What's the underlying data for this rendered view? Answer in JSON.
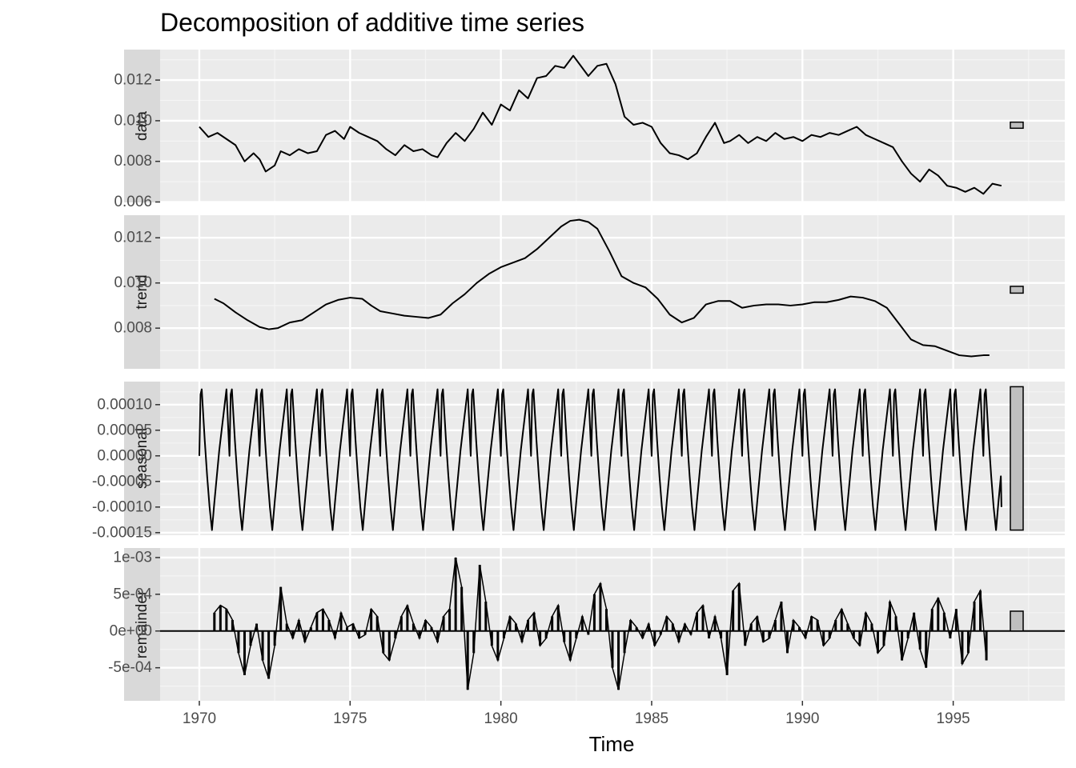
{
  "chart_data": {
    "type": "line",
    "title": "Decomposition of additive time series",
    "xlabel": "Time",
    "xlim": [
      1968.7,
      1998.7
    ],
    "x_ticks": [
      1970,
      1975,
      1980,
      1985,
      1990,
      1995
    ],
    "x_tick_labels": [
      "1970",
      "1975",
      "1980",
      "1985",
      "1990",
      "1995"
    ],
    "grid": true,
    "panels": [
      {
        "name": "data",
        "ylim": [
          0.00598,
          0.0135
        ],
        "y_ticks": [
          0.006,
          0.008,
          0.01,
          0.012
        ],
        "y_tick_labels": [
          "0.006",
          "0.008",
          "0.010",
          "0.012"
        ],
        "range_bar": [
          0.00963,
          0.00993
        ],
        "series": {
          "x": [
            1970.0,
            1970.3,
            1970.6,
            1970.9,
            1971.2,
            1971.5,
            1971.8,
            1972.0,
            1972.2,
            1972.5,
            1972.7,
            1973.0,
            1973.3,
            1973.6,
            1973.9,
            1974.2,
            1974.5,
            1974.8,
            1975.0,
            1975.3,
            1975.6,
            1975.9,
            1976.2,
            1976.5,
            1976.8,
            1977.1,
            1977.4,
            1977.7,
            1977.9,
            1978.2,
            1978.5,
            1978.8,
            1979.1,
            1979.4,
            1979.7,
            1980.0,
            1980.3,
            1980.6,
            1980.9,
            1981.2,
            1981.5,
            1981.8,
            1982.1,
            1982.4,
            1982.6,
            1982.9,
            1983.2,
            1983.5,
            1983.8,
            1984.1,
            1984.4,
            1984.7,
            1985.0,
            1985.3,
            1985.6,
            1985.9,
            1986.2,
            1986.5,
            1986.8,
            1987.1,
            1987.4,
            1987.6,
            1987.9,
            1988.2,
            1988.5,
            1988.8,
            1989.1,
            1989.4,
            1989.7,
            1990.0,
            1990.3,
            1990.6,
            1990.9,
            1991.2,
            1991.5,
            1991.8,
            1992.1,
            1992.4,
            1992.7,
            1993.0,
            1993.3,
            1993.6,
            1993.9,
            1994.2,
            1994.5,
            1994.8,
            1995.1,
            1995.4,
            1995.7,
            1996.0,
            1996.3,
            1996.6
          ],
          "y": [
            0.0097,
            0.0092,
            0.0094,
            0.0091,
            0.0088,
            0.008,
            0.0084,
            0.0081,
            0.0075,
            0.0078,
            0.0085,
            0.0083,
            0.0086,
            0.0084,
            0.0085,
            0.0093,
            0.0095,
            0.0091,
            0.0097,
            0.0094,
            0.0092,
            0.009,
            0.0086,
            0.0083,
            0.0088,
            0.0085,
            0.0086,
            0.0083,
            0.0082,
            0.0089,
            0.0094,
            0.009,
            0.0096,
            0.0104,
            0.0098,
            0.0108,
            0.0105,
            0.0115,
            0.0111,
            0.0121,
            0.0122,
            0.0127,
            0.0126,
            0.0132,
            0.0128,
            0.0122,
            0.0127,
            0.0128,
            0.0118,
            0.0102,
            0.0098,
            0.0099,
            0.0097,
            0.0089,
            0.0084,
            0.0083,
            0.0081,
            0.0084,
            0.0092,
            0.0099,
            0.0089,
            0.009,
            0.0093,
            0.0089,
            0.0092,
            0.009,
            0.0094,
            0.0091,
            0.0092,
            0.009,
            0.0093,
            0.0092,
            0.0094,
            0.0093,
            0.0095,
            0.0097,
            0.0093,
            0.0091,
            0.0089,
            0.0087,
            0.008,
            0.0074,
            0.007,
            0.0076,
            0.0073,
            0.0068,
            0.0067,
            0.0065,
            0.0067,
            0.0064,
            0.0069,
            0.0068
          ]
        }
      },
      {
        "name": "trend",
        "ylim": [
          0.0062,
          0.013
        ],
        "y_ticks": [
          0.008,
          0.01,
          0.012
        ],
        "y_tick_labels": [
          "0.008",
          "0.010",
          "0.012"
        ],
        "range_bar": [
          0.00955,
          0.00985
        ],
        "series": {
          "x": [
            1970.5,
            1970.8,
            1971.2,
            1971.6,
            1972.0,
            1972.3,
            1972.6,
            1973.0,
            1973.4,
            1973.8,
            1974.2,
            1974.6,
            1975.0,
            1975.4,
            1975.7,
            1976.0,
            1976.4,
            1976.8,
            1977.2,
            1977.6,
            1978.0,
            1978.4,
            1978.8,
            1979.2,
            1979.6,
            1980.0,
            1980.4,
            1980.8,
            1981.2,
            1981.6,
            1982.0,
            1982.3,
            1982.6,
            1982.9,
            1983.2,
            1983.6,
            1984.0,
            1984.4,
            1984.8,
            1985.2,
            1985.6,
            1986.0,
            1986.4,
            1986.8,
            1987.2,
            1987.6,
            1988.0,
            1988.4,
            1988.8,
            1989.2,
            1989.6,
            1990.0,
            1990.4,
            1990.8,
            1991.2,
            1991.6,
            1992.0,
            1992.4,
            1992.8,
            1993.2,
            1993.6,
            1994.0,
            1994.4,
            1994.8,
            1995.2,
            1995.6,
            1996.0,
            1996.2
          ],
          "y": [
            0.0093,
            0.0091,
            0.0087,
            0.00835,
            0.00805,
            0.00795,
            0.008,
            0.00825,
            0.00835,
            0.0087,
            0.00905,
            0.00925,
            0.00935,
            0.0093,
            0.009,
            0.00875,
            0.00865,
            0.00855,
            0.0085,
            0.00845,
            0.0086,
            0.0091,
            0.0095,
            0.01,
            0.0104,
            0.0107,
            0.0109,
            0.0111,
            0.0115,
            0.012,
            0.0125,
            0.01275,
            0.0128,
            0.0127,
            0.0124,
            0.0114,
            0.0103,
            0.01,
            0.0098,
            0.0093,
            0.0086,
            0.00825,
            0.00845,
            0.00905,
            0.0092,
            0.0092,
            0.0089,
            0.009,
            0.00905,
            0.00905,
            0.009,
            0.00905,
            0.00915,
            0.00915,
            0.00925,
            0.0094,
            0.00935,
            0.0092,
            0.0089,
            0.0082,
            0.0075,
            0.00725,
            0.0072,
            0.007,
            0.0068,
            0.00675,
            0.0068,
            0.0068
          ]
        }
      },
      {
        "name": "seasonal",
        "ylim": [
          -0.000155,
          0.000145
        ],
        "y_ticks": [
          0.0001,
          5e-05,
          0.0,
          -5e-05,
          -0.0001,
          -0.00015
        ],
        "y_tick_labels": [
          "0.00010",
          "0.00005",
          "0.00000",
          "-0.00005",
          "-0.00010",
          "-0.00015"
        ],
        "range_bar": [
          -0.000145,
          0.000135
        ],
        "period": 1,
        "cycle_phase": [
          0.0,
          0.04,
          0.08,
          0.12,
          0.18,
          0.26,
          0.34,
          0.42,
          0.5,
          0.58,
          0.66,
          0.74,
          0.82,
          0.9,
          1.0
        ],
        "cycle_values": [
          0.0,
          0.00012,
          0.00013,
          9e-05,
          3e-05,
          -4e-05,
          -0.0001,
          -0.000145,
          -9e-05,
          -4e-05,
          1e-05,
          5e-05,
          9e-05,
          0.00013,
          0.0
        ],
        "x_start": 1970.0,
        "x_end": 1996.6,
        "end_value": -0.0001
      },
      {
        "name": "remainder",
        "ylim": [
          -0.00095,
          0.00113
        ],
        "y_ticks": [
          0.001,
          0.0005,
          0.0,
          -0.0005
        ],
        "y_tick_labels": [
          "1e-03",
          "5e-04",
          "0e+00",
          "-5e-04"
        ],
        "range_bar": [
          0.0,
          0.00027
        ],
        "series": {
          "x": [
            1970.5,
            1970.7,
            1970.9,
            1971.1,
            1971.3,
            1971.5,
            1971.7,
            1971.9,
            1972.1,
            1972.3,
            1972.5,
            1972.7,
            1972.9,
            1973.1,
            1973.3,
            1973.5,
            1973.7,
            1973.9,
            1974.1,
            1974.3,
            1974.5,
            1974.7,
            1974.9,
            1975.1,
            1975.3,
            1975.5,
            1975.7,
            1975.9,
            1976.1,
            1976.3,
            1976.5,
            1976.7,
            1976.9,
            1977.1,
            1977.3,
            1977.5,
            1977.7,
            1977.9,
            1978.1,
            1978.3,
            1978.5,
            1978.7,
            1978.9,
            1979.1,
            1979.3,
            1979.5,
            1979.7,
            1979.9,
            1980.1,
            1980.3,
            1980.5,
            1980.7,
            1980.9,
            1981.1,
            1981.3,
            1981.5,
            1981.7,
            1981.9,
            1982.1,
            1982.3,
            1982.5,
            1982.7,
            1982.9,
            1983.1,
            1983.3,
            1983.5,
            1983.7,
            1983.9,
            1984.1,
            1984.3,
            1984.5,
            1984.7,
            1984.9,
            1985.1,
            1985.3,
            1985.5,
            1985.7,
            1985.9,
            1986.1,
            1986.3,
            1986.5,
            1986.7,
            1986.9,
            1987.1,
            1987.3,
            1987.5,
            1987.7,
            1987.9,
            1988.1,
            1988.3,
            1988.5,
            1988.7,
            1988.9,
            1989.1,
            1989.3,
            1989.5,
            1989.7,
            1989.9,
            1990.1,
            1990.3,
            1990.5,
            1990.7,
            1990.9,
            1991.1,
            1991.3,
            1991.5,
            1991.7,
            1991.9,
            1992.1,
            1992.3,
            1992.5,
            1992.7,
            1992.9,
            1993.1,
            1993.3,
            1993.5,
            1993.7,
            1993.9,
            1994.1,
            1994.3,
            1994.5,
            1994.7,
            1994.9,
            1995.1,
            1995.3,
            1995.5,
            1995.7,
            1995.9,
            1996.1
          ],
          "y": [
            0.00025,
            0.00035,
            0.0003,
            0.00015,
            -0.0003,
            -0.0006,
            -0.0002,
            0.0001,
            -0.0004,
            -0.00065,
            -0.0002,
            0.0006,
            0.0001,
            -0.0001,
            0.00015,
            -0.00015,
            5e-05,
            0.00025,
            0.0003,
            0.00015,
            -0.0001,
            0.00025,
            5e-05,
            0.0001,
            -0.0001,
            -5e-05,
            0.0003,
            0.0002,
            -0.0003,
            -0.0004,
            -0.0001,
            0.0002,
            0.00035,
            0.0001,
            -0.0001,
            0.00015,
            5e-05,
            -0.00015,
            0.0002,
            0.0003,
            0.001,
            0.0006,
            -0.0008,
            -0.0003,
            0.0009,
            0.0004,
            -0.0002,
            -0.0004,
            -0.0001,
            0.0002,
            0.0001,
            -0.00015,
            0.00015,
            0.00025,
            -0.0002,
            -0.0001,
            0.0002,
            0.00035,
            -0.00015,
            -0.0004,
            -0.0001,
            0.0002,
            -5e-05,
            0.0005,
            0.00065,
            0.0003,
            -0.0005,
            -0.0008,
            -0.0003,
            0.00015,
            5e-05,
            -0.0001,
            0.0001,
            -0.0002,
            -5e-05,
            0.0002,
            0.0001,
            -0.00015,
            0.0001,
            -5e-05,
            0.00025,
            0.00035,
            -0.0001,
            0.0002,
            -0.0001,
            -0.0006,
            0.00055,
            0.00065,
            -0.0002,
            0.0001,
            0.0002,
            -0.00015,
            -0.0001,
            0.00015,
            0.0004,
            -0.0003,
            0.00015,
            5e-05,
            -0.0001,
            0.0002,
            0.00015,
            -0.0002,
            -0.0001,
            0.00015,
            0.0003,
            0.0001,
            -0.0001,
            -0.0002,
            0.00025,
            0.0001,
            -0.0003,
            -0.0002,
            0.0004,
            0.0002,
            -0.0004,
            -0.0001,
            0.00025,
            -0.00025,
            -0.0005,
            0.0003,
            0.00045,
            0.00025,
            -0.0001,
            0.0003,
            -0.00045,
            -0.0003,
            0.0004,
            0.00055,
            -0.0004
          ]
        }
      }
    ]
  }
}
